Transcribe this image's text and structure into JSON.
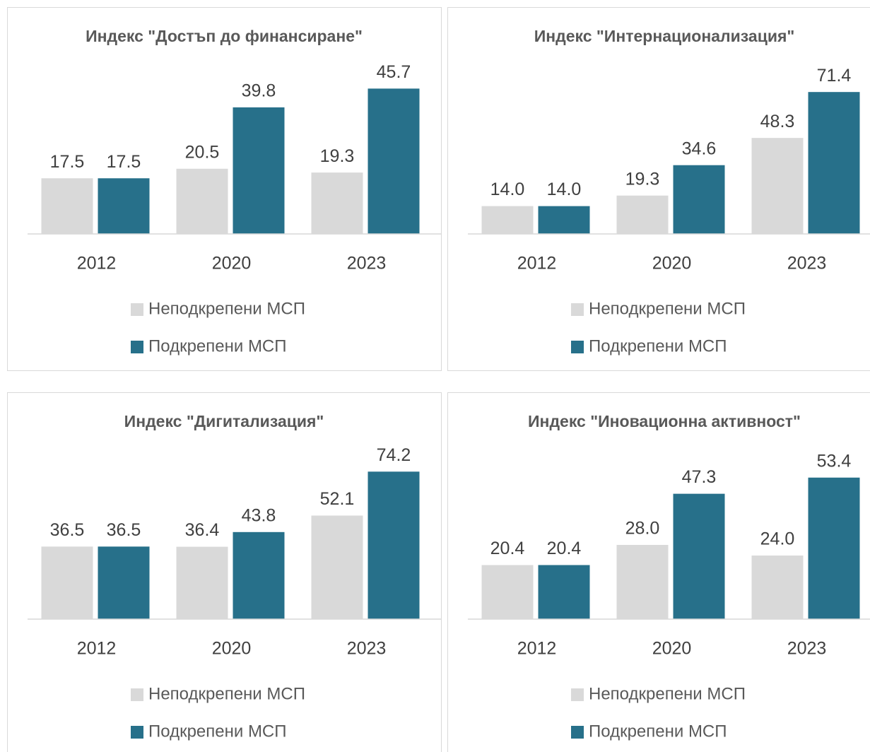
{
  "chart_data": [
    {
      "type": "bar",
      "title": "Индекс \"Достъп до финансиране\"",
      "categories": [
        "2012",
        "2020",
        "2023"
      ],
      "ylim": [
        0,
        50
      ],
      "series": [
        {
          "name": "Неподкрепени МСП",
          "color": "#d9d9d9",
          "values": [
            17.5,
            20.5,
            19.3
          ],
          "value_labels": [
            "17.5",
            "20.5",
            "19.3"
          ]
        },
        {
          "name": "Подкрепени МСП",
          "color": "#27708a",
          "values": [
            17.5,
            39.8,
            45.7
          ],
          "value_labels": [
            "17.5",
            "39.8",
            "45.7"
          ]
        }
      ]
    },
    {
      "type": "bar",
      "title": "Индекс \"Интернационализация\"",
      "categories": [
        "2012",
        "2020",
        "2023"
      ],
      "ylim": [
        0,
        80
      ],
      "series": [
        {
          "name": "Неподкрепени МСП",
          "color": "#d9d9d9",
          "values": [
            14,
            19.3,
            48.3
          ],
          "value_labels": [
            "14.0",
            "19.3",
            "48.3"
          ]
        },
        {
          "name": "Подкрепени МСП",
          "color": "#27708a",
          "values": [
            14,
            34.6,
            71.4
          ],
          "value_labels": [
            "14.0",
            "34.6",
            "71.4"
          ]
        }
      ]
    },
    {
      "type": "bar",
      "title": "Индекс \"Дигитализация\"",
      "categories": [
        "2012",
        "2020",
        "2023"
      ],
      "ylim": [
        0,
        80
      ],
      "series": [
        {
          "name": "Неподкрепени МСП",
          "color": "#d9d9d9",
          "values": [
            36.5,
            36.4,
            52.1
          ],
          "value_labels": [
            "36.5",
            "36.4",
            "52.1"
          ]
        },
        {
          "name": "Подкрепени МСП",
          "color": "#27708a",
          "values": [
            36.5,
            43.8,
            74.2
          ],
          "value_labels": [
            "36.5",
            "43.8",
            "74.2"
          ]
        }
      ]
    },
    {
      "type": "bar",
      "title": "Индекс \"Иновационна активност\"",
      "categories": [
        "2012",
        "2020",
        "2023"
      ],
      "ylim": [
        0,
        60
      ],
      "series": [
        {
          "name": "Неподкрепени МСП",
          "color": "#d9d9d9",
          "values": [
            20.4,
            28,
            24
          ],
          "value_labels": [
            "20.4",
            "28.0",
            "24.0"
          ]
        },
        {
          "name": "Подкрепени МСП",
          "color": "#27708a",
          "values": [
            20.4,
            47.3,
            53.4
          ],
          "value_labels": [
            "20.4",
            "47.3",
            "53.4"
          ]
        }
      ]
    }
  ]
}
